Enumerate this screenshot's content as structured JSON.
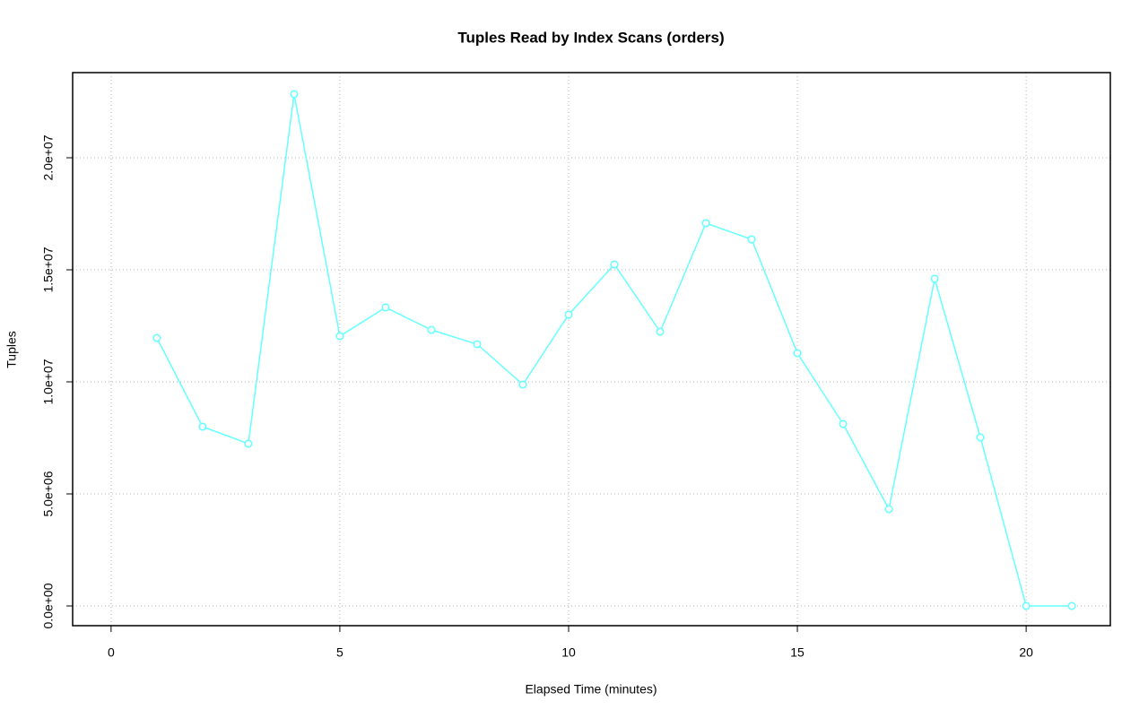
{
  "chart_data": {
    "type": "line",
    "title": "Tuples Read by Index Scans (orders)",
    "x_label": "Elapsed Time (minutes)",
    "y_label": "Tuples",
    "x": [
      1,
      2,
      3,
      4,
      5,
      6,
      7,
      8,
      9,
      10,
      11,
      12,
      13,
      14,
      15,
      16,
      17,
      18,
      19,
      20,
      21
    ],
    "series": [
      {
        "color": "#66ffff",
        "values": [
          11960000,
          8000000,
          7240000,
          22840000,
          12040000,
          13320000,
          12320000,
          11680000,
          9880000,
          13000000,
          15240000,
          12240000,
          17080000,
          16360000,
          11280000,
          8120000,
          4320000,
          14600000,
          7520000,
          0,
          0
        ]
      }
    ],
    "xlim": [
      -0.84,
      21.84
    ],
    "ylim": [
      -880000,
      23800000
    ],
    "xticks": [
      0,
      5,
      10,
      15,
      20
    ],
    "yticks": [
      {
        "value": 0,
        "label": "0.0e+00"
      },
      {
        "value": 5000000,
        "label": "5.0e+06"
      },
      {
        "value": 10000000,
        "label": "1.0e+07"
      },
      {
        "value": 15000000,
        "label": "1.5e+07"
      },
      {
        "value": 20000000,
        "label": "2.0e+07"
      }
    ],
    "grid": true
  }
}
